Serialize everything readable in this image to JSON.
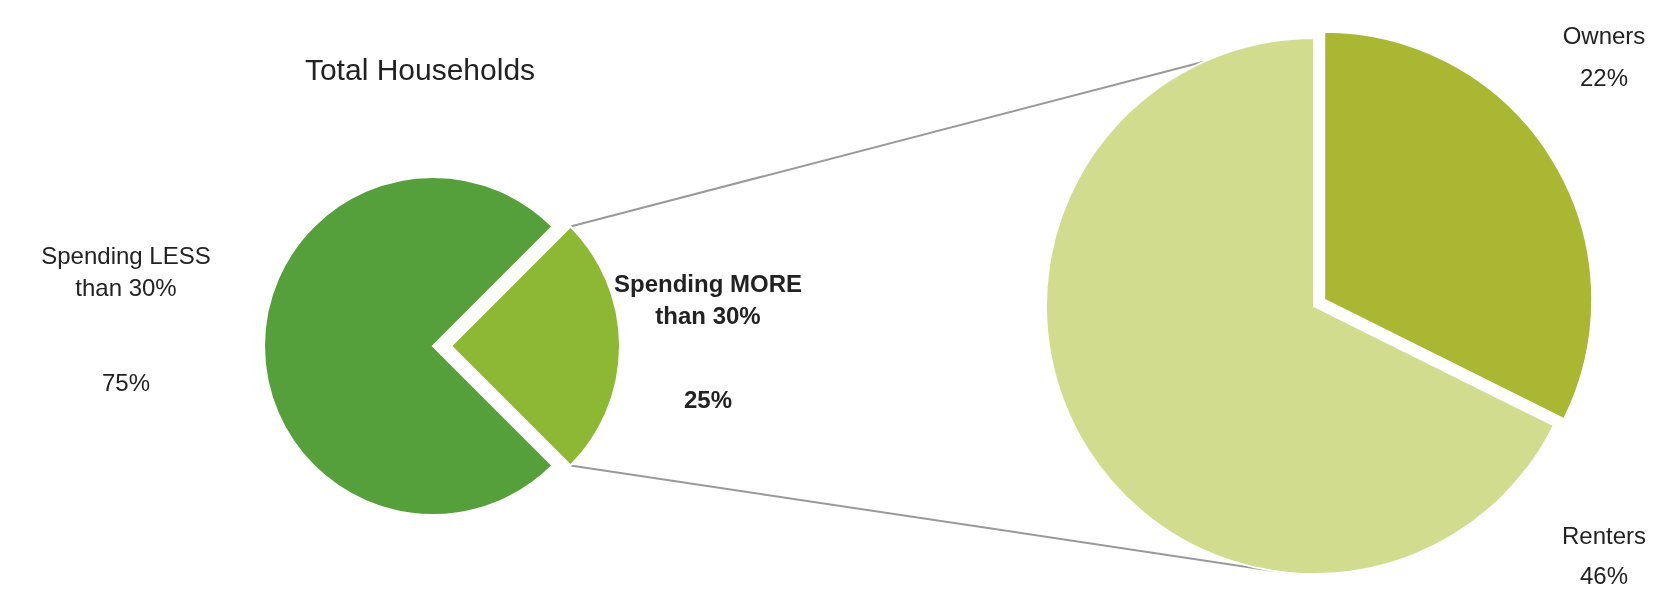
{
  "chart_data": [
    {
      "type": "pie",
      "title": "Total Households",
      "categories": [
        "Spending LESS than 30%",
        "Spending MORE than 30%"
      ],
      "values": [
        75,
        25
      ],
      "colors": [
        "#55a03a",
        "#8db833"
      ],
      "value_labels": [
        "75%",
        "25%"
      ]
    },
    {
      "type": "pie",
      "categories": [
        "Owners",
        "Renters"
      ],
      "values": [
        22,
        46
      ],
      "colors": [
        "#a9b733",
        "#d1dc8f"
      ],
      "value_labels": [
        "22%",
        "46%"
      ]
    }
  ]
}
